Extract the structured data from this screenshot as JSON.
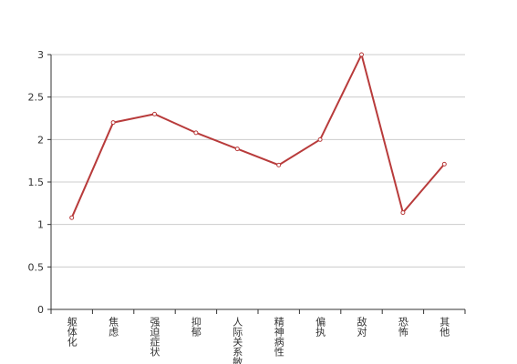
{
  "chart_data": {
    "type": "line",
    "categories": [
      "躯体化",
      "焦虑",
      "强迫症状",
      "抑郁",
      "人际关系敏感",
      "精神病性",
      "偏执",
      "敌对",
      "恐怖",
      "其他"
    ],
    "values": [
      1.08,
      2.2,
      2.3,
      2.08,
      1.89,
      1.7,
      2.0,
      3.0,
      1.14,
      1.71
    ],
    "color": "#b83b3b",
    "ylim": [
      0,
      3
    ],
    "yticks": [
      0,
      0.5,
      1,
      1.5,
      2,
      2.5,
      3
    ],
    "grid": true
  }
}
